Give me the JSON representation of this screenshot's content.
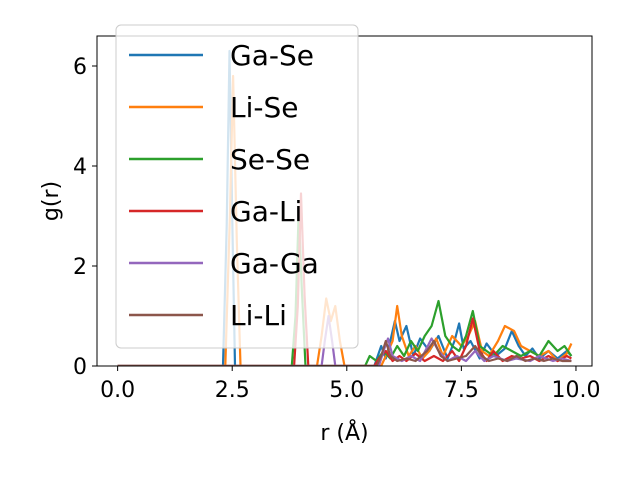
{
  "chart_data": {
    "type": "line",
    "title": "",
    "xlabel": "r (Å)",
    "ylabel": "g(r)",
    "xlim": [
      -0.45,
      10.35
    ],
    "ylim": [
      0,
      6.6
    ],
    "x_ticks": [
      0.0,
      2.5,
      5.0,
      7.5,
      10.0
    ],
    "x_tick_labels": [
      "0.0",
      "2.5",
      "5.0",
      "7.5",
      "10.0"
    ],
    "y_ticks": [
      0,
      2,
      4,
      6
    ],
    "y_tick_labels": [
      "0",
      "2",
      "4",
      "6"
    ],
    "grid": false,
    "legend_position": "upper-left",
    "series": [
      {
        "name": "Ga-Se",
        "color": "#1f77b4",
        "points": [
          [
            0,
            0
          ],
          [
            2.3,
            0
          ],
          [
            2.38,
            2.8
          ],
          [
            2.44,
            6.3
          ],
          [
            2.5,
            3.0
          ],
          [
            2.56,
            0
          ],
          [
            5.6,
            0
          ],
          [
            5.75,
            0.4
          ],
          [
            5.85,
            0.15
          ],
          [
            5.95,
            0.5
          ],
          [
            6.05,
            0.9
          ],
          [
            6.15,
            0.5
          ],
          [
            6.3,
            0.8
          ],
          [
            6.45,
            0.2
          ],
          [
            6.6,
            0.55
          ],
          [
            6.8,
            0.3
          ],
          [
            7.0,
            0.6
          ],
          [
            7.2,
            0.15
          ],
          [
            7.35,
            0.5
          ],
          [
            7.45,
            0.85
          ],
          [
            7.55,
            0.35
          ],
          [
            7.7,
            0.5
          ],
          [
            7.9,
            0.15
          ],
          [
            8.05,
            0.45
          ],
          [
            8.25,
            0.2
          ],
          [
            8.45,
            0.35
          ],
          [
            8.6,
            0.7
          ],
          [
            8.75,
            0.4
          ],
          [
            8.9,
            0.2
          ],
          [
            9.05,
            0.35
          ],
          [
            9.2,
            0.15
          ],
          [
            9.4,
            0.3
          ],
          [
            9.6,
            0.15
          ],
          [
            9.8,
            0.3
          ],
          [
            9.9,
            0.2
          ]
        ]
      },
      {
        "name": "Li-Se",
        "color": "#ff7f0e",
        "points": [
          [
            0,
            0
          ],
          [
            2.35,
            0
          ],
          [
            2.45,
            3.0
          ],
          [
            2.52,
            5.8
          ],
          [
            2.6,
            2.5
          ],
          [
            2.68,
            0
          ],
          [
            4.35,
            0
          ],
          [
            4.45,
            0.6
          ],
          [
            4.55,
            1.35
          ],
          [
            4.65,
            0.9
          ],
          [
            4.75,
            1.2
          ],
          [
            4.85,
            0.5
          ],
          [
            4.95,
            0
          ],
          [
            5.75,
            0
          ],
          [
            5.85,
            0.2
          ],
          [
            6.0,
            0.5
          ],
          [
            6.1,
            1.2
          ],
          [
            6.2,
            0.6
          ],
          [
            6.35,
            0.2
          ],
          [
            6.5,
            0.4
          ],
          [
            6.65,
            0.15
          ],
          [
            6.8,
            0.3
          ],
          [
            6.95,
            0.55
          ],
          [
            7.1,
            0.2
          ],
          [
            7.3,
            0.6
          ],
          [
            7.5,
            0.4
          ],
          [
            7.65,
            0.6
          ],
          [
            7.8,
            0.9
          ],
          [
            7.95,
            0.3
          ],
          [
            8.1,
            0.2
          ],
          [
            8.3,
            0.5
          ],
          [
            8.45,
            0.8
          ],
          [
            8.65,
            0.7
          ],
          [
            8.8,
            0.4
          ],
          [
            9.0,
            0.3
          ],
          [
            9.2,
            0.2
          ],
          [
            9.4,
            0.3
          ],
          [
            9.6,
            0.1
          ],
          [
            9.8,
            0.25
          ],
          [
            9.9,
            0.45
          ]
        ]
      },
      {
        "name": "Se-Se",
        "color": "#2ca02c",
        "points": [
          [
            0,
            0
          ],
          [
            3.8,
            0
          ],
          [
            3.88,
            1.0
          ],
          [
            3.95,
            3.1
          ],
          [
            4.02,
            1.5
          ],
          [
            4.1,
            0
          ],
          [
            5.4,
            0
          ],
          [
            5.5,
            0.2
          ],
          [
            5.65,
            0.1
          ],
          [
            5.8,
            0.3
          ],
          [
            5.95,
            0.15
          ],
          [
            6.1,
            0.4
          ],
          [
            6.25,
            0.2
          ],
          [
            6.4,
            0.5
          ],
          [
            6.55,
            0.3
          ],
          [
            6.7,
            0.6
          ],
          [
            6.85,
            0.8
          ],
          [
            7.0,
            1.3
          ],
          [
            7.15,
            0.6
          ],
          [
            7.3,
            0.4
          ],
          [
            7.45,
            0.3
          ],
          [
            7.6,
            0.6
          ],
          [
            7.75,
            1.1
          ],
          [
            7.9,
            0.4
          ],
          [
            8.05,
            0.3
          ],
          [
            8.2,
            0.2
          ],
          [
            8.4,
            0.4
          ],
          [
            8.6,
            0.3
          ],
          [
            8.8,
            0.2
          ],
          [
            9.0,
            0.3
          ],
          [
            9.2,
            0.2
          ],
          [
            9.4,
            0.5
          ],
          [
            9.6,
            0.3
          ],
          [
            9.75,
            0.4
          ],
          [
            9.9,
            0.2
          ]
        ]
      },
      {
        "name": "Ga-Li",
        "color": "#d62728",
        "points": [
          [
            0,
            0
          ],
          [
            3.85,
            0
          ],
          [
            3.93,
            1.2
          ],
          [
            4.0,
            3.45
          ],
          [
            4.08,
            1.4
          ],
          [
            4.16,
            0
          ],
          [
            5.6,
            0
          ],
          [
            5.7,
            0.15
          ],
          [
            5.85,
            0.3
          ],
          [
            6.0,
            0.1
          ],
          [
            6.15,
            0.2
          ],
          [
            6.3,
            0.1
          ],
          [
            6.5,
            0.25
          ],
          [
            6.7,
            0.1
          ],
          [
            6.9,
            0.2
          ],
          [
            7.1,
            0.1
          ],
          [
            7.3,
            0.3
          ],
          [
            7.45,
            0.1
          ],
          [
            7.6,
            0.4
          ],
          [
            7.75,
            0.95
          ],
          [
            7.9,
            0.3
          ],
          [
            8.05,
            0.1
          ],
          [
            8.2,
            0.3
          ],
          [
            8.4,
            0.1
          ],
          [
            8.6,
            0.2
          ],
          [
            8.8,
            0.15
          ],
          [
            9.0,
            0.2
          ],
          [
            9.2,
            0.1
          ],
          [
            9.4,
            0.2
          ],
          [
            9.6,
            0.1
          ],
          [
            9.8,
            0.2
          ],
          [
            9.9,
            0.15
          ]
        ]
      },
      {
        "name": "Ga-Ga",
        "color": "#9467bd",
        "points": [
          [
            0,
            0
          ],
          [
            4.45,
            0
          ],
          [
            4.52,
            0.5
          ],
          [
            4.6,
            1.0
          ],
          [
            4.68,
            0.5
          ],
          [
            4.75,
            0
          ],
          [
            5.7,
            0
          ],
          [
            5.8,
            0.3
          ],
          [
            5.9,
            0.55
          ],
          [
            6.0,
            0.2
          ],
          [
            6.2,
            0.1
          ],
          [
            6.4,
            0.2
          ],
          [
            6.6,
            0.1
          ],
          [
            6.85,
            0.55
          ],
          [
            7.0,
            0.3
          ],
          [
            7.2,
            0.1
          ],
          [
            7.4,
            0.2
          ],
          [
            7.6,
            0.1
          ],
          [
            7.8,
            0.3
          ],
          [
            8.0,
            0.1
          ],
          [
            8.2,
            0.2
          ],
          [
            8.5,
            0.1
          ],
          [
            8.7,
            0.15
          ],
          [
            9.0,
            0.1
          ],
          [
            9.2,
            0.2
          ],
          [
            9.5,
            0.1
          ],
          [
            9.7,
            0.15
          ],
          [
            9.9,
            0.1
          ]
        ]
      },
      {
        "name": "Li-Li",
        "color": "#8c564b",
        "points": [
          [
            0,
            0
          ],
          [
            5.65,
            0
          ],
          [
            5.75,
            0.2
          ],
          [
            5.85,
            0.5
          ],
          [
            5.95,
            0.2
          ],
          [
            6.1,
            0.1
          ],
          [
            6.3,
            0.15
          ],
          [
            6.5,
            0.1
          ],
          [
            6.75,
            0.3
          ],
          [
            6.9,
            0.5
          ],
          [
            7.05,
            0.2
          ],
          [
            7.2,
            0.1
          ],
          [
            7.4,
            0.15
          ],
          [
            7.6,
            0.2
          ],
          [
            7.8,
            0.4
          ],
          [
            7.95,
            0.2
          ],
          [
            8.1,
            0.1
          ],
          [
            8.3,
            0.15
          ],
          [
            8.5,
            0.1
          ],
          [
            8.7,
            0.2
          ],
          [
            8.9,
            0.1
          ],
          [
            9.1,
            0.15
          ],
          [
            9.3,
            0.1
          ],
          [
            9.5,
            0.15
          ],
          [
            9.7,
            0.1
          ],
          [
            9.9,
            0.1
          ]
        ]
      }
    ]
  }
}
